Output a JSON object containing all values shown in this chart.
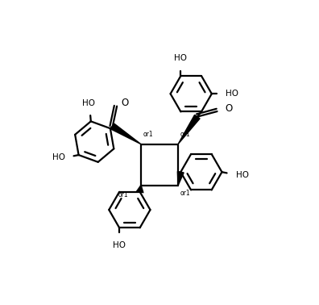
{
  "bg_color": "#ffffff",
  "line_color": "#000000",
  "lw": 1.6,
  "fs": 7.5,
  "figsize": [
    3.96,
    3.78
  ],
  "dpi": 100,
  "xlim": [
    -3.0,
    3.2
  ],
  "ylim": [
    -3.2,
    3.0
  ]
}
